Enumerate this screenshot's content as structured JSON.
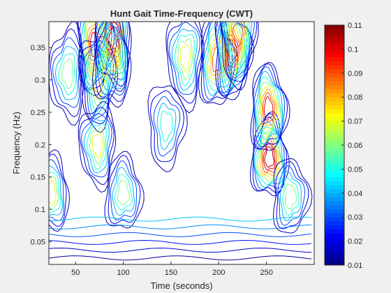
{
  "chart_data": {
    "type": "heatmap",
    "subtype": "contour",
    "title": "Hunt Gait Time-Frequency (CWT)",
    "xlabel": "Time (seconds)",
    "ylabel": "Frequency (Hz)",
    "xlim": [
      22,
      300
    ],
    "ylim": [
      0.015,
      0.39
    ],
    "xticks": [
      50,
      100,
      150,
      200,
      250
    ],
    "xtick_labels": [
      "50",
      "100",
      "150",
      "200",
      "250"
    ],
    "yticks": [
      0.05,
      0.1,
      0.15,
      0.2,
      0.25,
      0.3,
      0.35
    ],
    "ytick_labels": [
      "0.05",
      "0.1",
      "0.15",
      "0.2",
      "0.25",
      "0.3",
      "0.35"
    ],
    "colorbar": {
      "min": 0.01,
      "max": 0.11,
      "ticks": [
        0.01,
        0.02,
        0.03,
        0.04,
        0.05,
        0.06,
        0.07,
        0.08,
        0.09,
        0.1,
        0.11
      ],
      "tick_labels": [
        "0.01",
        "0.02",
        "0.03",
        "0.04",
        "0.05",
        "0.06",
        "0.07",
        "0.08",
        "0.09",
        "0.1",
        "0.11"
      ],
      "colormap": "jet"
    },
    "peaks": [
      {
        "time": 253,
        "frequency": 0.18,
        "value": 0.11
      },
      {
        "time": 252,
        "frequency": 0.255,
        "value": 0.1
      },
      {
        "time": 70,
        "frequency": 0.355,
        "value": 0.1
      },
      {
        "time": 73,
        "frequency": 0.3,
        "value": 0.08
      },
      {
        "time": 73,
        "frequency": 0.2,
        "value": 0.07
      },
      {
        "time": 90,
        "frequency": 0.365,
        "value": 0.11
      },
      {
        "time": 88,
        "frequency": 0.33,
        "value": 0.08
      },
      {
        "time": 198,
        "frequency": 0.33,
        "value": 0.09
      },
      {
        "time": 214,
        "frequency": 0.345,
        "value": 0.11
      },
      {
        "time": 220,
        "frequency": 0.37,
        "value": 0.09
      },
      {
        "time": 165,
        "frequency": 0.335,
        "value": 0.07
      },
      {
        "time": 42,
        "frequency": 0.31,
        "value": 0.06
      },
      {
        "time": 24,
        "frequency": 0.125,
        "value": 0.07
      },
      {
        "time": 100,
        "frequency": 0.125,
        "value": 0.06
      },
      {
        "time": 275,
        "frequency": 0.12,
        "value": 0.06
      },
      {
        "time": 145,
        "frequency": 0.23,
        "value": 0.05
      }
    ],
    "grid": false,
    "legend": "colorbar-right"
  }
}
